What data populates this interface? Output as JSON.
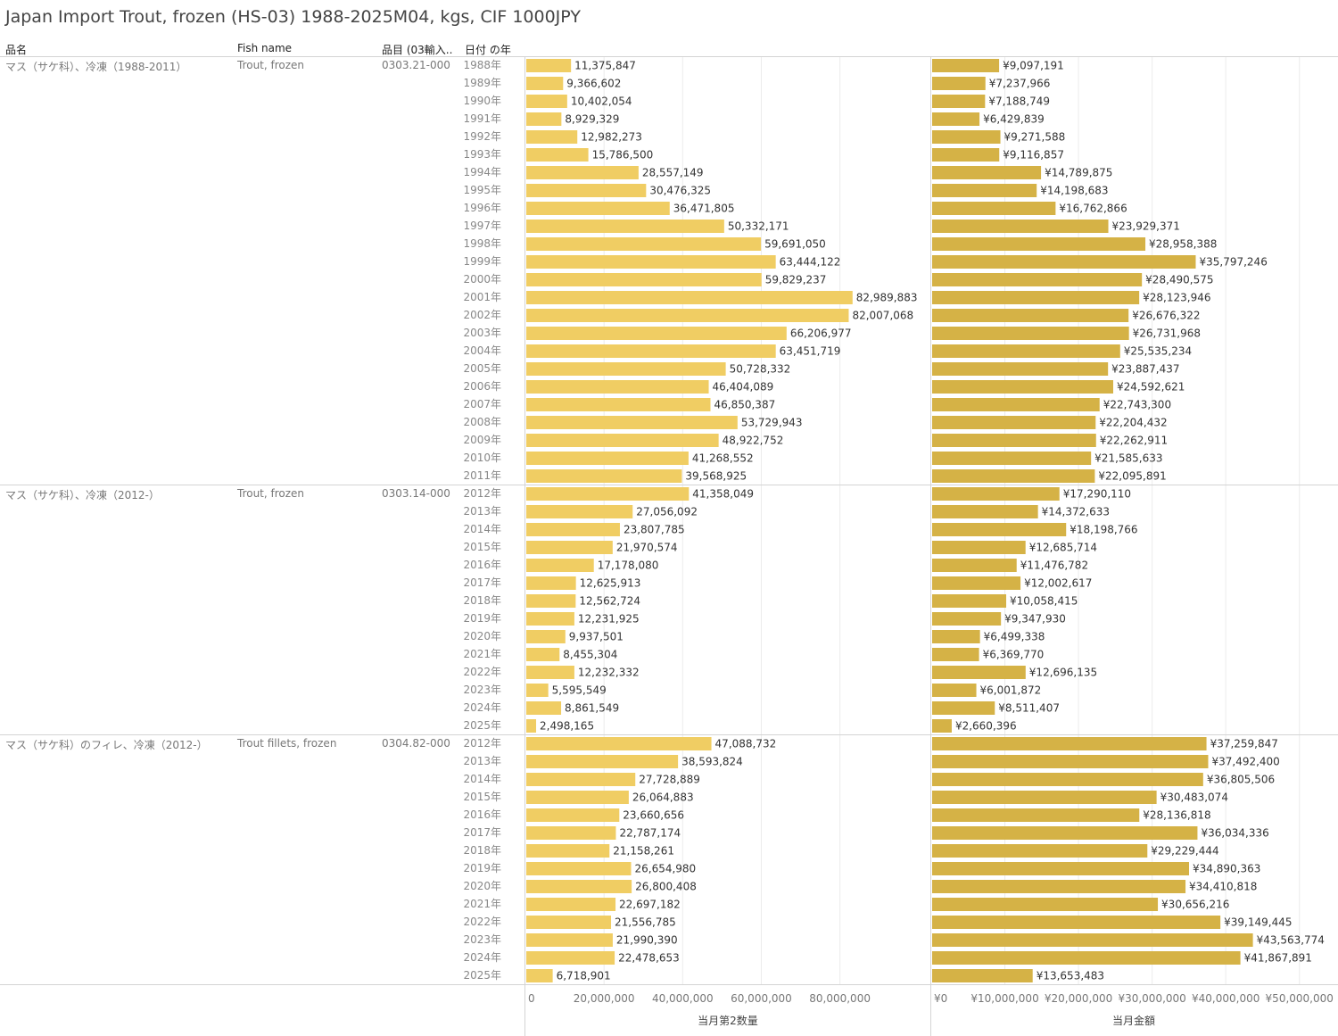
{
  "title": "Japan Import Trout, frozen (HS-03) 1988-2025M04, kgs, CIF 1000JPY",
  "headers": {
    "name_jp": "品名",
    "fish_name": "Fish name",
    "item_code": "品目 (03輸入..",
    "year": "日付 の年"
  },
  "colors": {
    "qty_bar": "#f0cd63",
    "value_bar": "#d5b246",
    "grid": "#ececec",
    "divider": "#d4d4d4"
  },
  "chart_data": {
    "type": "bar",
    "orientation": "horizontal",
    "title": "Japan Import Trout, frozen (HS-03) 1988-2025M04, kgs, CIF 1000JPY",
    "measures": [
      {
        "key": "qty",
        "axis_title": "当月第2数量",
        "xlim": [
          0,
          103000000
        ],
        "ticks": [
          0,
          20000000,
          40000000,
          60000000,
          80000000
        ],
        "tick_labels": [
          "0",
          "20,000,000",
          "40,000,000",
          "60,000,000",
          "80,000,000"
        ]
      },
      {
        "key": "value",
        "axis_title": "当月金額",
        "xlim": [
          0,
          55000000
        ],
        "ticks": [
          0,
          10000000,
          20000000,
          30000000,
          40000000,
          50000000
        ],
        "tick_labels": [
          "¥0",
          "¥10,000,000",
          "¥20,000,000",
          "¥30,000,000",
          "¥40,000,000",
          "¥50,000,000"
        ]
      }
    ],
    "groups": [
      {
        "name_jp": "マス（サケ科）、冷凍（1988-2011）",
        "fish_name": "Trout, frozen",
        "code": "0303.21-000",
        "rows": [
          {
            "year": "1988年",
            "qty": 11375847,
            "qty_label": "11,375,847",
            "value": 9097191,
            "value_label": "¥9,097,191"
          },
          {
            "year": "1989年",
            "qty": 9366602,
            "qty_label": "9,366,602",
            "value": 7237966,
            "value_label": "¥7,237,966"
          },
          {
            "year": "1990年",
            "qty": 10402054,
            "qty_label": "10,402,054",
            "value": 7188749,
            "value_label": "¥7,188,749"
          },
          {
            "year": "1991年",
            "qty": 8929329,
            "qty_label": "8,929,329",
            "value": 6429839,
            "value_label": "¥6,429,839"
          },
          {
            "year": "1992年",
            "qty": 12982273,
            "qty_label": "12,982,273",
            "value": 9271588,
            "value_label": "¥9,271,588"
          },
          {
            "year": "1993年",
            "qty": 15786500,
            "qty_label": "15,786,500",
            "value": 9116857,
            "value_label": "¥9,116,857"
          },
          {
            "year": "1994年",
            "qty": 28557149,
            "qty_label": "28,557,149",
            "value": 14789875,
            "value_label": "¥14,789,875"
          },
          {
            "year": "1995年",
            "qty": 30476325,
            "qty_label": "30,476,325",
            "value": 14198683,
            "value_label": "¥14,198,683"
          },
          {
            "year": "1996年",
            "qty": 36471805,
            "qty_label": "36,471,805",
            "value": 16762866,
            "value_label": "¥16,762,866"
          },
          {
            "year": "1997年",
            "qty": 50332171,
            "qty_label": "50,332,171",
            "value": 23929371,
            "value_label": "¥23,929,371"
          },
          {
            "year": "1998年",
            "qty": 59691050,
            "qty_label": "59,691,050",
            "value": 28958388,
            "value_label": "¥28,958,388"
          },
          {
            "year": "1999年",
            "qty": 63444122,
            "qty_label": "63,444,122",
            "value": 35797246,
            "value_label": "¥35,797,246"
          },
          {
            "year": "2000年",
            "qty": 59829237,
            "qty_label": "59,829,237",
            "value": 28490575,
            "value_label": "¥28,490,575"
          },
          {
            "year": "2001年",
            "qty": 82989883,
            "qty_label": "82,989,883",
            "value": 28123946,
            "value_label": "¥28,123,946"
          },
          {
            "year": "2002年",
            "qty": 82007068,
            "qty_label": "82,007,068",
            "value": 26676322,
            "value_label": "¥26,676,322"
          },
          {
            "year": "2003年",
            "qty": 66206977,
            "qty_label": "66,206,977",
            "value": 26731968,
            "value_label": "¥26,731,968"
          },
          {
            "year": "2004年",
            "qty": 63451719,
            "qty_label": "63,451,719",
            "value": 25535234,
            "value_label": "¥25,535,234"
          },
          {
            "year": "2005年",
            "qty": 50728332,
            "qty_label": "50,728,332",
            "value": 23887437,
            "value_label": "¥23,887,437"
          },
          {
            "year": "2006年",
            "qty": 46404089,
            "qty_label": "46,404,089",
            "value": 24592621,
            "value_label": "¥24,592,621"
          },
          {
            "year": "2007年",
            "qty": 46850387,
            "qty_label": "46,850,387",
            "value": 22743300,
            "value_label": "¥22,743,300"
          },
          {
            "year": "2008年",
            "qty": 53729943,
            "qty_label": "53,729,943",
            "value": 22204432,
            "value_label": "¥22,204,432"
          },
          {
            "year": "2009年",
            "qty": 48922752,
            "qty_label": "48,922,752",
            "value": 22262911,
            "value_label": "¥22,262,911"
          },
          {
            "year": "2010年",
            "qty": 41268552,
            "qty_label": "41,268,552",
            "value": 21585633,
            "value_label": "¥21,585,633"
          },
          {
            "year": "2011年",
            "qty": 39568925,
            "qty_label": "39,568,925",
            "value": 22095891,
            "value_label": "¥22,095,891"
          }
        ]
      },
      {
        "name_jp": "マス（サケ科）、冷凍（2012-）",
        "fish_name": "Trout, frozen",
        "code": "0303.14-000",
        "rows": [
          {
            "year": "2012年",
            "qty": 41358049,
            "qty_label": "41,358,049",
            "value": 17290110,
            "value_label": "¥17,290,110"
          },
          {
            "year": "2013年",
            "qty": 27056092,
            "qty_label": "27,056,092",
            "value": 14372633,
            "value_label": "¥14,372,633"
          },
          {
            "year": "2014年",
            "qty": 23807785,
            "qty_label": "23,807,785",
            "value": 18198766,
            "value_label": "¥18,198,766"
          },
          {
            "year": "2015年",
            "qty": 21970574,
            "qty_label": "21,970,574",
            "value": 12685714,
            "value_label": "¥12,685,714"
          },
          {
            "year": "2016年",
            "qty": 17178080,
            "qty_label": "17,178,080",
            "value": 11476782,
            "value_label": "¥11,476,782"
          },
          {
            "year": "2017年",
            "qty": 12625913,
            "qty_label": "12,625,913",
            "value": 12002617,
            "value_label": "¥12,002,617"
          },
          {
            "year": "2018年",
            "qty": 12562724,
            "qty_label": "12,562,724",
            "value": 10058415,
            "value_label": "¥10,058,415"
          },
          {
            "year": "2019年",
            "qty": 12231925,
            "qty_label": "12,231,925",
            "value": 9347930,
            "value_label": "¥9,347,930"
          },
          {
            "year": "2020年",
            "qty": 9937501,
            "qty_label": "9,937,501",
            "value": 6499338,
            "value_label": "¥6,499,338"
          },
          {
            "year": "2021年",
            "qty": 8455304,
            "qty_label": "8,455,304",
            "value": 6369770,
            "value_label": "¥6,369,770"
          },
          {
            "year": "2022年",
            "qty": 12232332,
            "qty_label": "12,232,332",
            "value": 12696135,
            "value_label": "¥12,696,135"
          },
          {
            "year": "2023年",
            "qty": 5595549,
            "qty_label": "5,595,549",
            "value": 6001872,
            "value_label": "¥6,001,872"
          },
          {
            "year": "2024年",
            "qty": 8861549,
            "qty_label": "8,861,549",
            "value": 8511407,
            "value_label": "¥8,511,407"
          },
          {
            "year": "2025年",
            "qty": 2498165,
            "qty_label": "2,498,165",
            "value": 2660396,
            "value_label": "¥2,660,396"
          }
        ]
      },
      {
        "name_jp": "マス（サケ科）のフィレ、冷凍（2012-）",
        "fish_name": "Trout fillets, frozen",
        "code": "0304.82-000",
        "rows": [
          {
            "year": "2012年",
            "qty": 47088732,
            "qty_label": "47,088,732",
            "value": 37259847,
            "value_label": "¥37,259,847"
          },
          {
            "year": "2013年",
            "qty": 38593824,
            "qty_label": "38,593,824",
            "value": 37492400,
            "value_label": "¥37,492,400"
          },
          {
            "year": "2014年",
            "qty": 27728889,
            "qty_label": "27,728,889",
            "value": 36805506,
            "value_label": "¥36,805,506"
          },
          {
            "year": "2015年",
            "qty": 26064883,
            "qty_label": "26,064,883",
            "value": 30483074,
            "value_label": "¥30,483,074"
          },
          {
            "year": "2016年",
            "qty": 23660656,
            "qty_label": "23,660,656",
            "value": 28136818,
            "value_label": "¥28,136,818"
          },
          {
            "year": "2017年",
            "qty": 22787174,
            "qty_label": "22,787,174",
            "value": 36034336,
            "value_label": "¥36,034,336"
          },
          {
            "year": "2018年",
            "qty": 21158261,
            "qty_label": "21,158,261",
            "value": 29229444,
            "value_label": "¥29,229,444"
          },
          {
            "year": "2019年",
            "qty": 26654980,
            "qty_label": "26,654,980",
            "value": 34890363,
            "value_label": "¥34,890,363"
          },
          {
            "year": "2020年",
            "qty": 26800408,
            "qty_label": "26,800,408",
            "value": 34410818,
            "value_label": "¥34,410,818"
          },
          {
            "year": "2021年",
            "qty": 22697182,
            "qty_label": "22,697,182",
            "value": 30656216,
            "value_label": "¥30,656,216"
          },
          {
            "year": "2022年",
            "qty": 21556785,
            "qty_label": "21,556,785",
            "value": 39149445,
            "value_label": "¥39,149,445"
          },
          {
            "year": "2023年",
            "qty": 21990390,
            "qty_label": "21,990,390",
            "value": 43563774,
            "value_label": "¥43,563,774"
          },
          {
            "year": "2024年",
            "qty": 22478653,
            "qty_label": "22,478,653",
            "value": 41867891,
            "value_label": "¥41,867,891"
          },
          {
            "year": "2025年",
            "qty": 6718901,
            "qty_label": "6,718,901",
            "value": 13653483,
            "value_label": "¥13,653,483"
          }
        ]
      }
    ]
  }
}
